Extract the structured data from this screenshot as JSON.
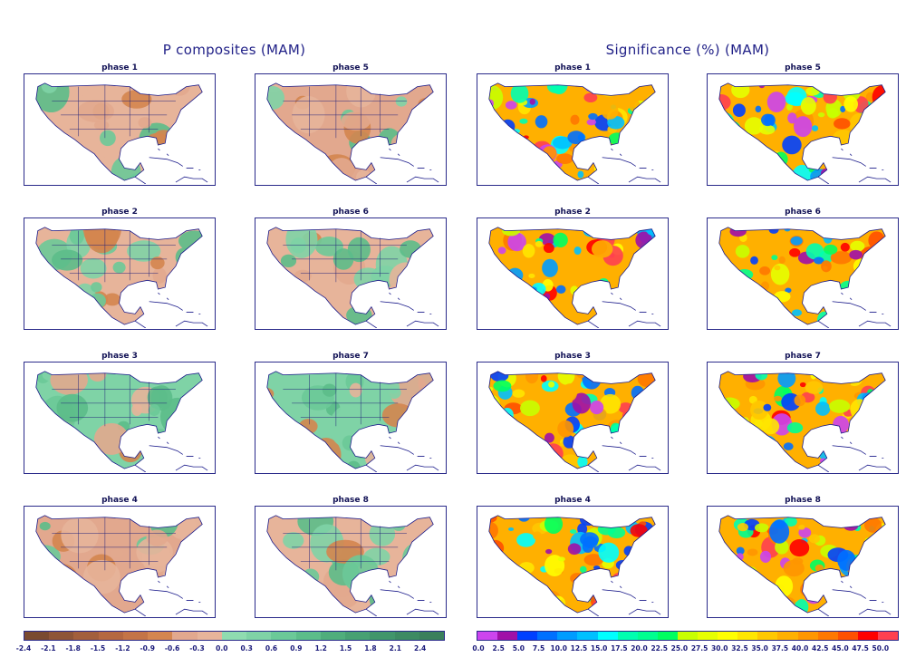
{
  "chart_data": [
    {
      "type": "heatmap",
      "title": "P composites (MAM)",
      "panels": [
        {
          "label": "phase 1",
          "dominant_sign": "mixed"
        },
        {
          "label": "phase 5",
          "dominant_sign": "negative"
        },
        {
          "label": "phase 2",
          "dominant_sign": "mixed"
        },
        {
          "label": "phase 6",
          "dominant_sign": "mixed"
        },
        {
          "label": "phase 3",
          "dominant_sign": "positive"
        },
        {
          "label": "phase 7",
          "dominant_sign": "positive"
        },
        {
          "label": "phase 4",
          "dominant_sign": "negative"
        },
        {
          "label": "phase 8",
          "dominant_sign": "mixed"
        }
      ],
      "colorbar": {
        "ticks": [
          "-2.4",
          "-2.1",
          "-1.8",
          "-1.5",
          "-1.2",
          "-0.9",
          "-0.6",
          "-0.3",
          "0.0",
          "0.3",
          "0.6",
          "0.9",
          "1.2",
          "1.5",
          "1.8",
          "2.1",
          "2.4"
        ],
        "colors": [
          "#7a4a30",
          "#8f5537",
          "#a35f3c",
          "#b56841",
          "#c47447",
          "#d4854f",
          "#e2a88e",
          "#e7b49a",
          "#8fdcb0",
          "#7fd3a6",
          "#6bc998",
          "#5cbd8a",
          "#4fae7c",
          "#47a173",
          "#41966b",
          "#3d8b63",
          "#3a805c"
        ]
      }
    },
    {
      "type": "heatmap",
      "title": "Significance (%) (MAM)",
      "panels": [
        {
          "label": "phase 1"
        },
        {
          "label": "phase 5"
        },
        {
          "label": "phase 2"
        },
        {
          "label": "phase 6"
        },
        {
          "label": "phase 3"
        },
        {
          "label": "phase 7"
        },
        {
          "label": "phase 4"
        },
        {
          "label": "phase 8"
        }
      ],
      "colorbar": {
        "ticks": [
          "0.0",
          "2.5",
          "5.0",
          "7.5",
          "10.0",
          "12.5",
          "15.0",
          "17.5",
          "20.0",
          "22.5",
          "25.0",
          "27.5",
          "30.0",
          "32.5",
          "35.0",
          "37.5",
          "40.0",
          "42.5",
          "45.0",
          "47.5",
          "50.0"
        ],
        "colors": [
          "#cc44ee",
          "#a010a8",
          "#0040ff",
          "#0070ff",
          "#009cff",
          "#00c0ff",
          "#00ffff",
          "#00ffb0",
          "#00ff90",
          "#00ff60",
          "#c8ff00",
          "#e6ff00",
          "#ffff00",
          "#ffe600",
          "#ffc800",
          "#ffb000",
          "#ff9600",
          "#ff7800",
          "#ff5000",
          "#ff0000",
          "#ff4050"
        ]
      }
    }
  ]
}
